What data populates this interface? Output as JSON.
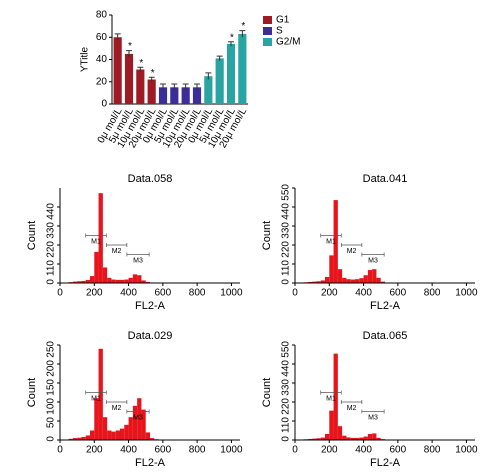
{
  "chart_data": [
    {
      "type": "bar",
      "ylabel": "YTitle",
      "categories": [
        "0μ mol/L",
        "5μ mol/L",
        "10μ mol/L",
        "20μ mol/L",
        "0μ mol/L",
        "5μ mol/L",
        "10μ mol/L",
        "20μ mol/L",
        "0μ mol/L",
        "5μ mol/L",
        "10μ mol/L",
        "20μ mol/L"
      ],
      "series": [
        {
          "name": "G1",
          "color": "#9e1b25",
          "values": [
            60,
            45,
            31,
            22,
            null,
            null,
            null,
            null,
            null,
            null,
            null,
            null
          ],
          "errors": [
            3,
            3,
            2,
            2,
            null,
            null,
            null,
            null,
            null,
            null,
            null,
            null
          ],
          "significance": [
            null,
            "*",
            "*",
            "*",
            null,
            null,
            null,
            null,
            null,
            null,
            null,
            null
          ]
        },
        {
          "name": "S",
          "color": "#3b2e9a",
          "values": [
            null,
            null,
            null,
            null,
            15,
            15,
            15,
            15,
            null,
            null,
            null,
            null
          ],
          "errors": [
            null,
            null,
            null,
            null,
            3,
            3,
            3,
            3,
            null,
            null,
            null,
            null
          ],
          "significance": [
            null,
            null,
            null,
            null,
            null,
            null,
            null,
            null,
            null,
            null,
            null,
            null
          ]
        },
        {
          "name": "G2/M",
          "color": "#2aa3a3",
          "values": [
            null,
            null,
            null,
            null,
            null,
            null,
            null,
            null,
            25,
            41,
            54,
            63
          ],
          "errors": [
            null,
            null,
            null,
            null,
            null,
            null,
            null,
            null,
            3,
            2,
            2,
            3
          ],
          "significance": [
            null,
            null,
            null,
            null,
            null,
            null,
            null,
            null,
            null,
            null,
            "*",
            "*"
          ]
        }
      ],
      "ylim": [
        0,
        80
      ],
      "yticks": [
        0,
        20,
        40,
        60,
        80
      ]
    },
    {
      "type": "histogram",
      "title": "Data.058",
      "xlabel": "FL2-A",
      "ylabel": "Count",
      "color": "#e8141c",
      "bins": [
        0,
        25,
        50,
        75,
        100,
        125,
        150,
        175,
        200,
        225,
        250,
        275,
        300,
        325,
        350,
        375,
        400,
        425,
        450,
        475,
        500,
        525,
        550,
        575,
        600,
        625,
        650,
        675,
        700,
        725,
        750,
        775,
        800,
        825,
        850,
        875,
        900,
        925,
        950,
        975,
        1000
      ],
      "counts": [
        0,
        0,
        5,
        8,
        10,
        12,
        18,
        40,
        180,
        520,
        90,
        30,
        20,
        18,
        18,
        20,
        30,
        50,
        45,
        15,
        6,
        3,
        2,
        2,
        1,
        1,
        1,
        1,
        1,
        1,
        0,
        0,
        0,
        0,
        0,
        0,
        0,
        0,
        0,
        0
      ],
      "xlim": [
        0,
        1050
      ],
      "xticks": [
        0,
        200,
        400,
        600,
        800,
        1000
      ],
      "ylim": [
        0,
        550
      ],
      "yticks": [
        0,
        110,
        220,
        330,
        440
      ],
      "gates": [
        {
          "label": "M1",
          "range": [
            150,
            270
          ]
        },
        {
          "label": "M2",
          "range": [
            270,
            390
          ]
        },
        {
          "label": "M3",
          "range": [
            390,
            520
          ]
        }
      ]
    },
    {
      "type": "histogram",
      "title": "Data.041",
      "xlabel": "FL2-A",
      "ylabel": "Count",
      "color": "#e8141c",
      "bins": [
        0,
        25,
        50,
        75,
        100,
        125,
        150,
        175,
        200,
        225,
        250,
        275,
        300,
        325,
        350,
        375,
        400,
        425,
        450,
        475,
        500,
        525,
        550,
        575,
        600,
        625,
        650,
        675,
        700,
        725,
        750,
        775,
        800,
        825,
        850,
        875,
        900,
        925,
        950,
        975,
        1000
      ],
      "counts": [
        0,
        0,
        4,
        6,
        8,
        10,
        15,
        35,
        160,
        480,
        80,
        30,
        22,
        20,
        22,
        28,
        45,
        75,
        80,
        30,
        8,
        3,
        2,
        2,
        1,
        1,
        1,
        1,
        1,
        1,
        0,
        0,
        0,
        0,
        0,
        0,
        0,
        0,
        0,
        0
      ],
      "xlim": [
        0,
        1050
      ],
      "xticks": [
        0,
        200,
        400,
        600,
        800,
        1000
      ],
      "ylim": [
        0,
        550
      ],
      "yticks": [
        0,
        110,
        220,
        330,
        440,
        550
      ],
      "gates": [
        {
          "label": "M1",
          "range": [
            150,
            270
          ]
        },
        {
          "label": "M2",
          "range": [
            270,
            390
          ]
        },
        {
          "label": "M3",
          "range": [
            390,
            520
          ]
        }
      ]
    },
    {
      "type": "histogram",
      "title": "Data.029",
      "xlabel": "FL2-A",
      "ylabel": "Count",
      "color": "#e8141c",
      "bins": [
        0,
        25,
        50,
        75,
        100,
        125,
        150,
        175,
        200,
        225,
        250,
        275,
        300,
        325,
        350,
        375,
        400,
        425,
        450,
        475,
        500,
        525,
        550,
        575,
        600,
        625,
        650,
        675,
        700,
        725,
        750,
        775,
        800,
        825,
        850,
        875,
        900,
        925,
        950,
        975,
        1000
      ],
      "counts": [
        0,
        0,
        3,
        5,
        6,
        8,
        12,
        25,
        110,
        240,
        60,
        25,
        22,
        25,
        30,
        40,
        60,
        90,
        110,
        80,
        20,
        5,
        2,
        1,
        1,
        1,
        1,
        1,
        1,
        1,
        0,
        0,
        0,
        0,
        0,
        0,
        0,
        0,
        0,
        0
      ],
      "xlim": [
        0,
        1050
      ],
      "xticks": [
        0,
        200,
        400,
        600,
        800,
        1000
      ],
      "ylim": [
        0,
        250
      ],
      "yticks": [
        0,
        50,
        100,
        150,
        200,
        250
      ],
      "gates": [
        {
          "label": "M1",
          "range": [
            150,
            270
          ]
        },
        {
          "label": "M2",
          "range": [
            270,
            390
          ]
        },
        {
          "label": "M3",
          "range": [
            390,
            520
          ]
        }
      ]
    },
    {
      "type": "histogram",
      "title": "Data.065",
      "xlabel": "FL2-A",
      "ylabel": "Count",
      "color": "#e8141c",
      "bins": [
        0,
        25,
        50,
        75,
        100,
        125,
        150,
        175,
        200,
        225,
        250,
        275,
        300,
        325,
        350,
        375,
        400,
        425,
        450,
        475,
        500,
        525,
        550,
        575,
        600,
        625,
        650,
        675,
        700,
        725,
        750,
        775,
        800,
        825,
        850,
        875,
        900,
        925,
        950,
        975,
        1000
      ],
      "counts": [
        0,
        0,
        4,
        6,
        8,
        10,
        14,
        35,
        170,
        500,
        80,
        25,
        15,
        12,
        12,
        14,
        20,
        35,
        38,
        12,
        5,
        2,
        2,
        1,
        1,
        1,
        1,
        1,
        1,
        1,
        0,
        0,
        0,
        0,
        0,
        0,
        0,
        0,
        0,
        0
      ],
      "xlim": [
        0,
        1050
      ],
      "xticks": [
        0,
        200,
        400,
        600,
        800,
        1000
      ],
      "ylim": [
        0,
        550
      ],
      "yticks": [
        0,
        110,
        220,
        330,
        440,
        550
      ],
      "gates": [
        {
          "label": "M1",
          "range": [
            150,
            270
          ]
        },
        {
          "label": "M2",
          "range": [
            270,
            390
          ]
        },
        {
          "label": "M3",
          "range": [
            390,
            520
          ]
        }
      ]
    }
  ]
}
